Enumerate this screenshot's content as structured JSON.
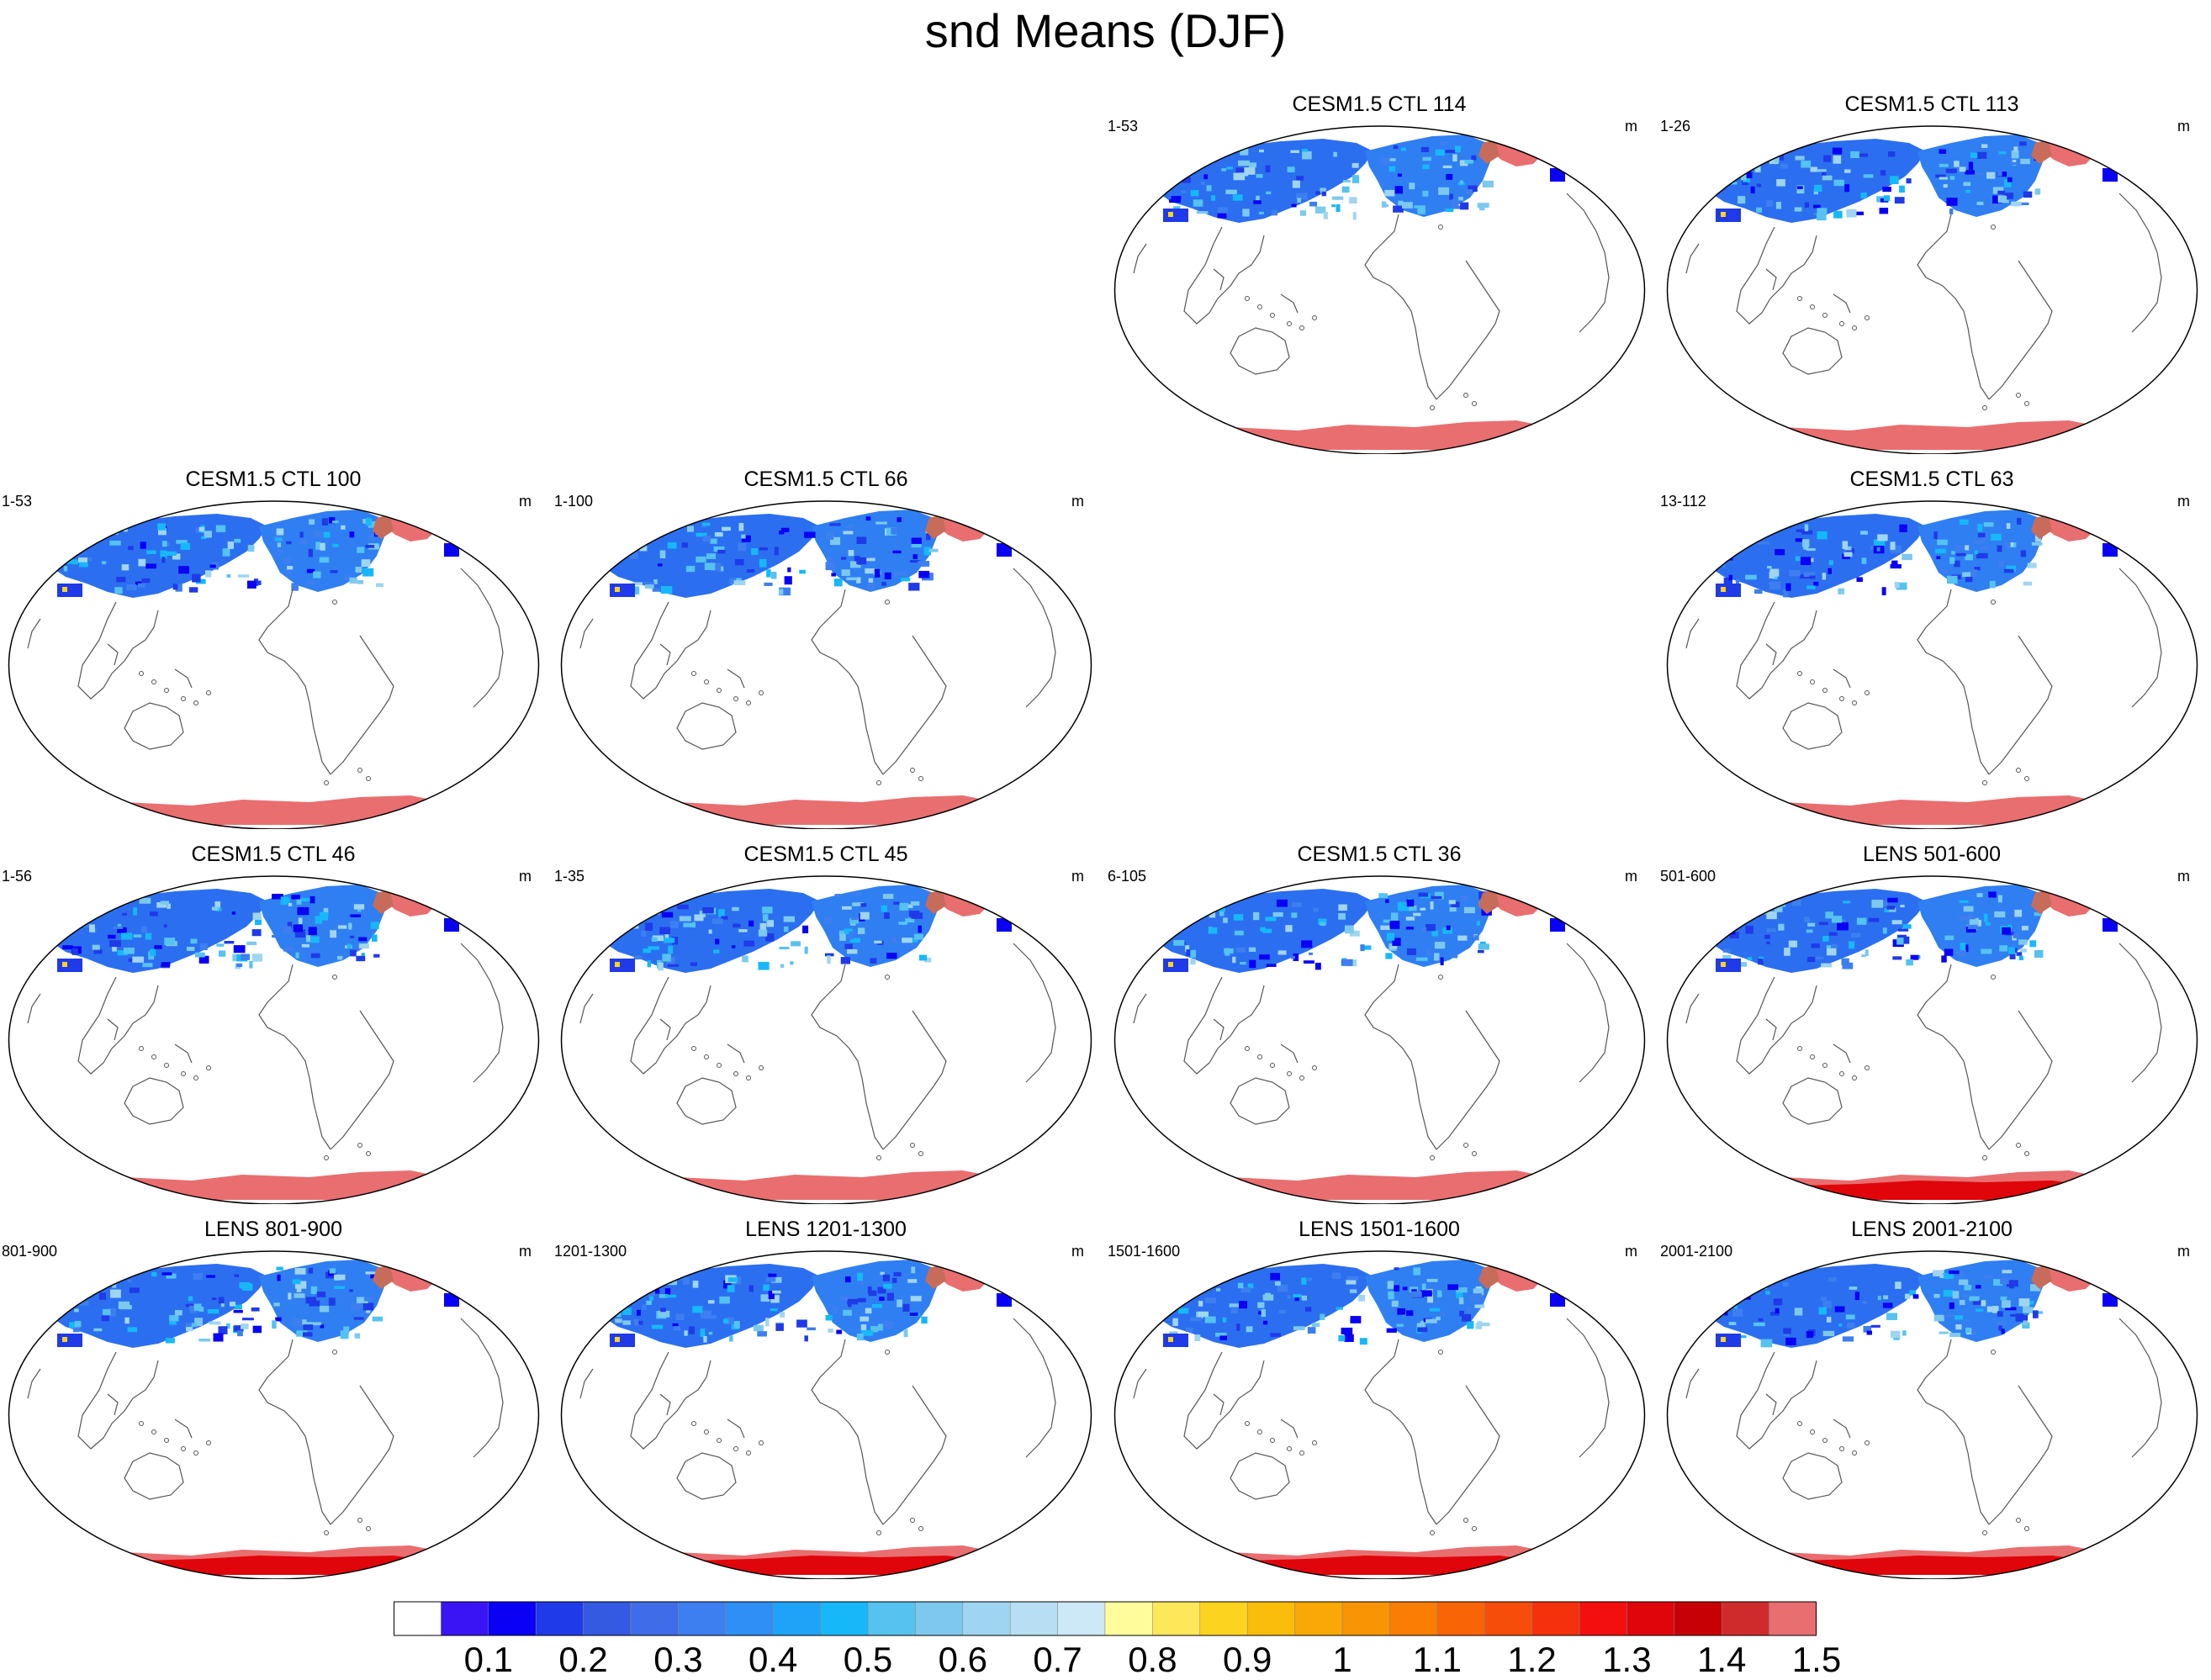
{
  "title": "snd Means (DJF)",
  "panels": [
    {
      "title": "CESM1.5 CTL 114",
      "left_label": "1-53",
      "right_label": "m",
      "antarctic": "flat"
    },
    {
      "title": "CESM1.5 CTL 113",
      "left_label": "1-26",
      "right_label": "m",
      "antarctic": "flat"
    },
    {
      "title": "CESM1.5 CTL 100",
      "left_label": "1-53",
      "right_label": "m",
      "antarctic": "flat"
    },
    {
      "title": "CESM1.5 CTL 66",
      "left_label": "1-100",
      "right_label": "m",
      "antarctic": "flat"
    },
    {
      "title": "CESM1.5 CTL 63",
      "left_label": "13-112",
      "right_label": "m",
      "antarctic": "flat"
    },
    {
      "title": "CESM1.5 CTL 46",
      "left_label": "1-56",
      "right_label": "m",
      "antarctic": "flat"
    },
    {
      "title": "CESM1.5 CTL 45",
      "left_label": "1-35",
      "right_label": "m",
      "antarctic": "flat"
    },
    {
      "title": "CESM1.5 CTL 36",
      "left_label": "6-105",
      "right_label": "m",
      "antarctic": "flat"
    },
    {
      "title": "LENS 501-600",
      "left_label": "501-600",
      "right_label": "m",
      "antarctic": "deep"
    },
    {
      "title": "LENS 801-900",
      "left_label": "801-900",
      "right_label": "m",
      "antarctic": "deep"
    },
    {
      "title": "LENS 1201-1300",
      "left_label": "1201-1300",
      "right_label": "m",
      "antarctic": "deep"
    },
    {
      "title": "LENS 1501-1600",
      "left_label": "1501-1600",
      "right_label": "m",
      "antarctic": "deep"
    },
    {
      "title": "LENS 2001-2100",
      "left_label": "2001-2100",
      "right_label": "m",
      "antarctic": "deep"
    }
  ],
  "colorbar": {
    "labels": [
      "0.1",
      "0.2",
      "0.3",
      "0.4",
      "0.5",
      "0.6",
      "0.7",
      "0.8",
      "0.9",
      "1",
      "1.1",
      "1.2",
      "1.3",
      "1.4",
      "1.5"
    ],
    "colors": [
      "#ffffff",
      "#3a14f5",
      "#0a00f5",
      "#1f3ae8",
      "#3459e3",
      "#3f6ce8",
      "#3d7ef0",
      "#2f8ff5",
      "#1fa3f8",
      "#17b8fa",
      "#55c2f0",
      "#7dc9ee",
      "#9fd5f0",
      "#b7def3",
      "#cde8f6",
      "#fffc9c",
      "#fde85a",
      "#fcd41f",
      "#fbbd0c",
      "#faa806",
      "#f99404",
      "#f97e03",
      "#f86406",
      "#f74d0a",
      "#f5300d",
      "#f20f0d",
      "#df050a",
      "#c70005",
      "#d02b2c",
      "#e96e70"
    ]
  }
}
